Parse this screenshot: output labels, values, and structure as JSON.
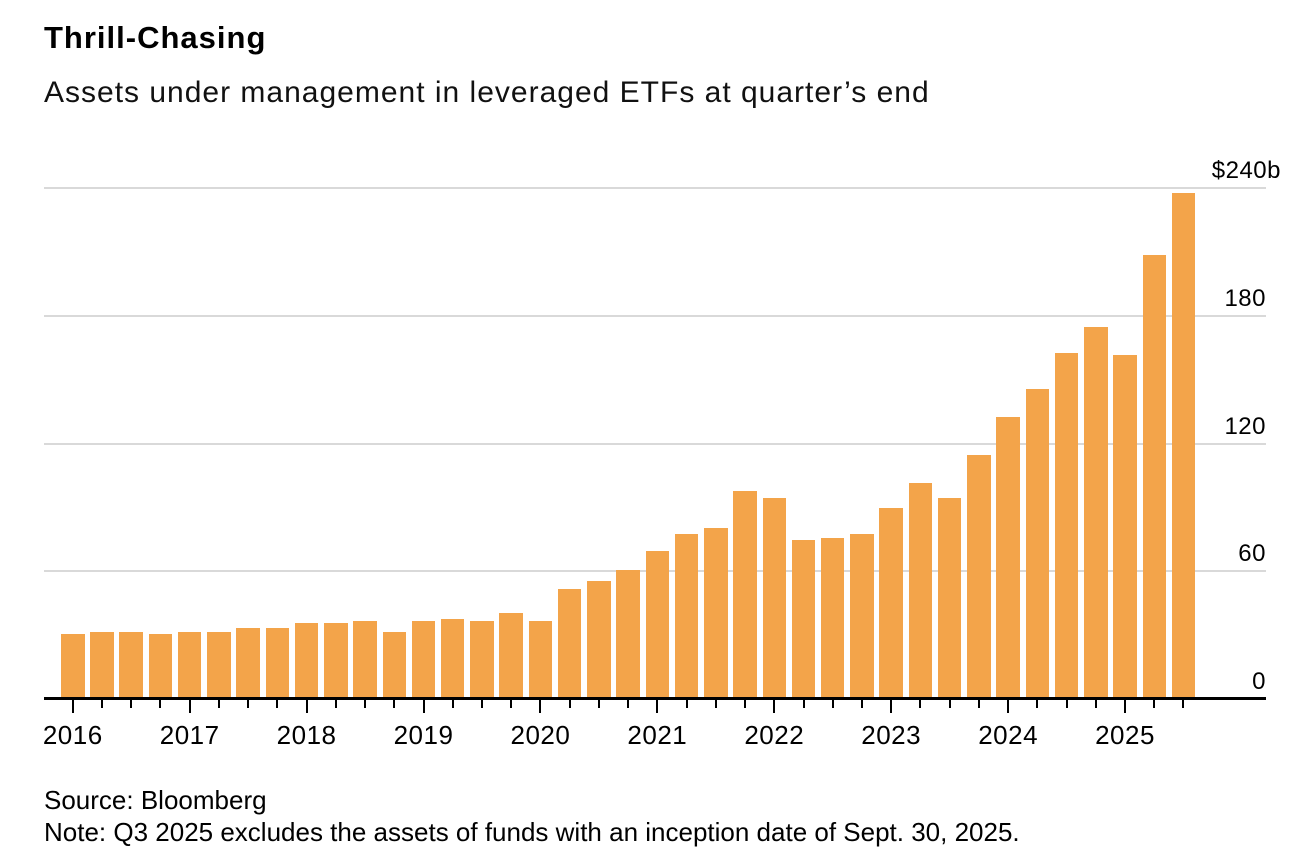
{
  "header": {
    "title": "Thrill-Chasing",
    "subtitle": "Assets under management in leveraged ETFs at quarter’s end"
  },
  "footer": {
    "source": "Source: Bloomberg",
    "note": "Note: Q3 2025 excludes the assets of funds with an inception date of Sept. 30, 2025."
  },
  "chart_data": {
    "type": "bar",
    "title": "Thrill-Chasing",
    "subtitle": "Assets under management in leveraged ETFs at quarter’s end",
    "unit": "billions of US dollars",
    "categories": [
      "Q1 2016",
      "Q2 2016",
      "Q3 2016",
      "Q4 2016",
      "Q1 2017",
      "Q2 2017",
      "Q3 2017",
      "Q4 2017",
      "Q1 2018",
      "Q2 2018",
      "Q3 2018",
      "Q4 2018",
      "Q1 2019",
      "Q2 2019",
      "Q3 2019",
      "Q4 2019",
      "Q1 2020",
      "Q2 2020",
      "Q3 2020",
      "Q4 2020",
      "Q1 2021",
      "Q2 2021",
      "Q3 2021",
      "Q4 2021",
      "Q1 2022",
      "Q2 2022",
      "Q3 2022",
      "Q4 2022",
      "Q1 2023",
      "Q2 2023",
      "Q3 2023",
      "Q4 2023",
      "Q1 2024",
      "Q2 2024",
      "Q3 2024",
      "Q4 2024",
      "Q1 2025",
      "Q2 2025",
      "Q3 2025"
    ],
    "values": [
      31,
      32,
      32,
      31,
      32,
      32,
      34,
      34,
      36,
      36,
      37,
      32,
      37,
      38,
      37,
      41,
      37,
      52,
      56,
      61,
      70,
      78,
      81,
      98,
      95,
      75,
      76,
      78,
      90,
      102,
      95,
      115,
      133,
      146,
      163,
      175,
      162,
      209,
      238
    ],
    "ylim": [
      0,
      240
    ],
    "yticks": [
      {
        "value": 240,
        "label": "$240b"
      },
      {
        "value": 180,
        "label": "180"
      },
      {
        "value": 120,
        "label": "120"
      },
      {
        "value": 60,
        "label": "60"
      },
      {
        "value": 0,
        "label": "0"
      }
    ],
    "xticks_years": [
      "2016",
      "2017",
      "2018",
      "2019",
      "2020",
      "2021",
      "2022",
      "2023",
      "2024",
      "2025"
    ],
    "grid": "horizontal gridlines on",
    "legend": "none",
    "bar_color": "#F3A44A",
    "gridline_color": "#D9D9D9",
    "axis_color": "#000000",
    "source": "Source: Bloomberg",
    "note": "Note: Q3 2025 excludes the assets of funds with an inception date of Sept. 30, 2025."
  }
}
